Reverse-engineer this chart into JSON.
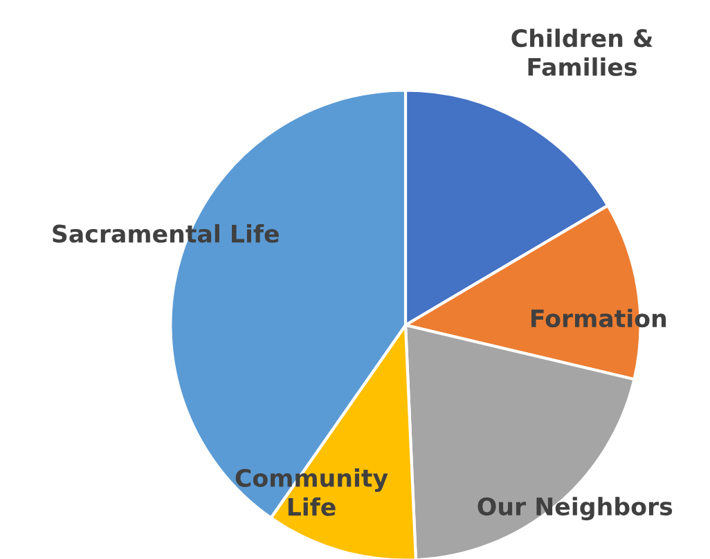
{
  "chart_data": {
    "type": "pie",
    "categories": [
      "Children &\nFamilies",
      "Formation",
      "Our Neighbors",
      "Community\nLife",
      "Sacramental Life"
    ],
    "values": [
      16.5,
      12.2,
      20.6,
      10.4,
      40.3
    ],
    "colors": [
      "#4472c4",
      "#ed7d31",
      "#a5a5a5",
      "#ffc000",
      "#5b9bd5"
    ]
  }
}
